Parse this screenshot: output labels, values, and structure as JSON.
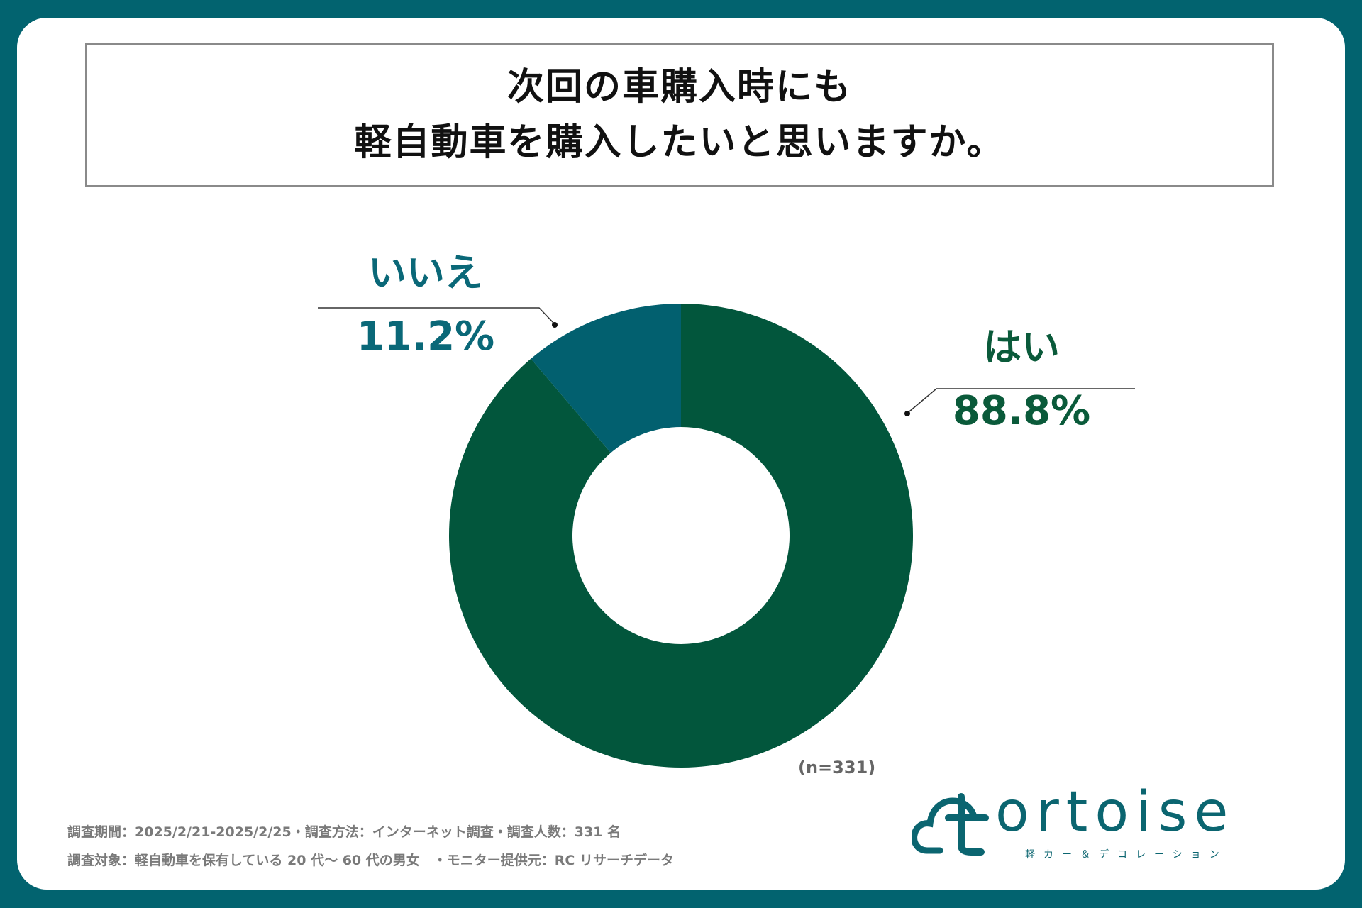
{
  "title": {
    "line1": "次回の車購入時にも",
    "line2": "軽自動車を購入したいと思いますか。"
  },
  "colors": {
    "background": "#02636f",
    "yes": "#02563c",
    "no": "#02606f",
    "no_text": "#0a6878",
    "yes_text": "#0a5a3a"
  },
  "chart_data": {
    "type": "pie",
    "categories": [
      "はい",
      "いいえ"
    ],
    "values": [
      88.8,
      11.2
    ],
    "value_labels": [
      "88.8%",
      "11.2%"
    ],
    "sample_size": "(n=331)"
  },
  "labels": {
    "no_name": "いいえ",
    "no_pct": "11.2%",
    "yes_name": "はい",
    "yes_pct": "88.8%"
  },
  "footnotes": {
    "line1": "調査期間：2025/2/21-2025/2/25・調査方法：インターネット調査・調査人数：331 名",
    "line2": "調査対象：軽自動車を保有している 20 代〜 60 代の男女　・モニター提供元：RC リサーチデータ"
  },
  "logo": {
    "word": "ortoise",
    "tagline": "軽カー＆デコレーション",
    "icon": "cloud-t-logo-icon"
  }
}
